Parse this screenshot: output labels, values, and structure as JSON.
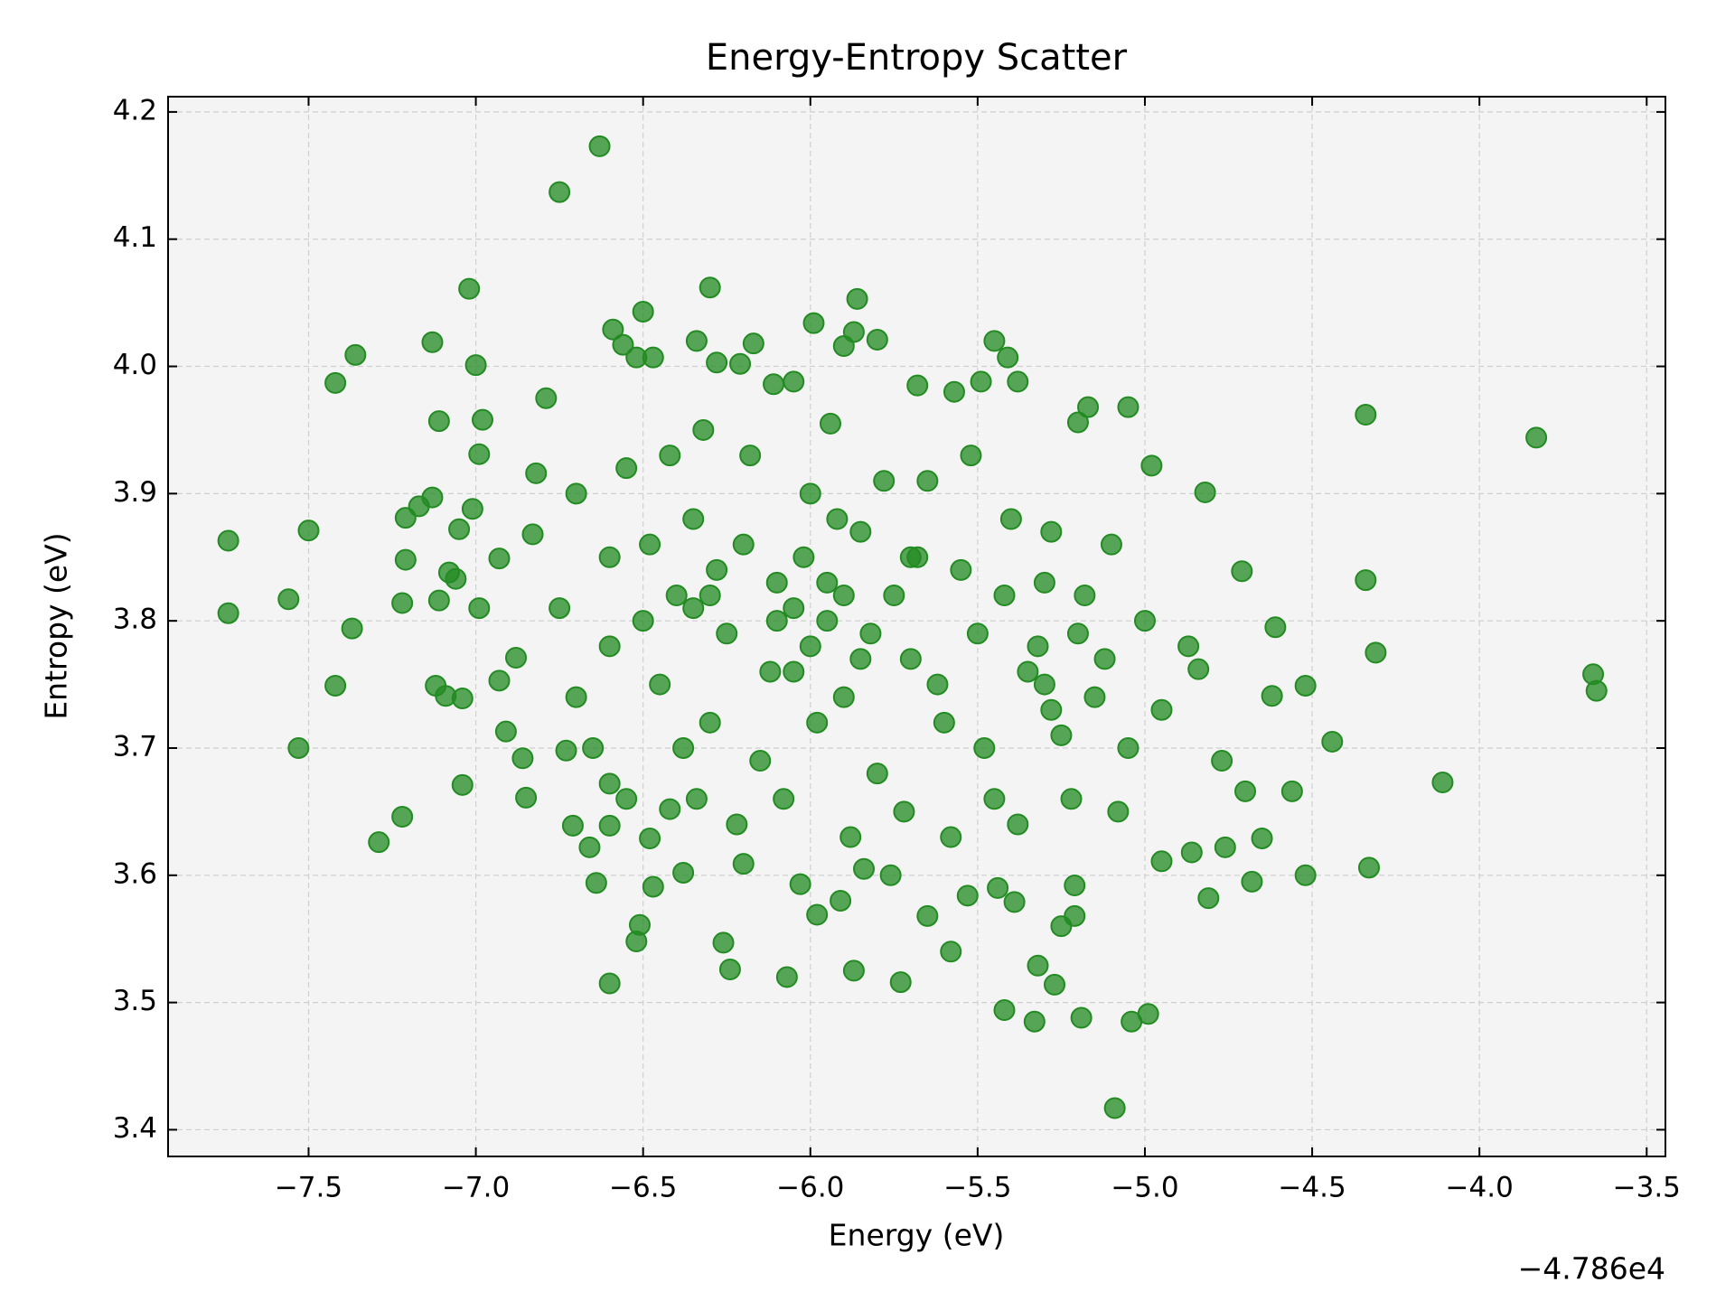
{
  "chart_data": {
    "type": "scatter",
    "title": "Energy-Entropy Scatter",
    "x_label": "Energy (eV)",
    "y_label": "Entropy (eV)",
    "x_offset_label": "−4.786e4",
    "color": "#228b22",
    "grid": true,
    "xlim": [
      -7.92,
      -3.444
    ],
    "ylim": [
      3.379,
      4.212
    ],
    "xticks": [
      {
        "value": -7.5,
        "label": "−7.5"
      },
      {
        "value": -7.0,
        "label": "−7.0"
      },
      {
        "value": -6.5,
        "label": "−6.5"
      },
      {
        "value": -6.0,
        "label": "−6.0"
      },
      {
        "value": -5.5,
        "label": "−5.5"
      },
      {
        "value": -5.0,
        "label": "−5.0"
      },
      {
        "value": -4.5,
        "label": "−4.5"
      },
      {
        "value": -4.0,
        "label": "−4.0"
      },
      {
        "value": -3.5,
        "label": "−3.5"
      }
    ],
    "yticks": [
      3.4,
      3.5,
      3.6,
      3.7,
      3.8,
      3.9,
      {
        "value": 4.0,
        "label": "4.0"
      },
      4.1,
      4.2
    ],
    "x": [
      -6.63,
      -6.75,
      -7.02,
      -6.3,
      -7.74,
      -7.74,
      -7.56,
      -7.5,
      -7.53,
      -7.42,
      -7.36,
      -7.13,
      -7.42,
      -7.37,
      -7.29,
      -7.22,
      -7.22,
      -7.21,
      -7.21,
      -7.17,
      -7.13,
      -7.11,
      -7.11,
      -7.12,
      -7.09,
      -7.08,
      -7.06,
      -7.05,
      -7.04,
      -7.04,
      -7.01,
      -7.0,
      -6.99,
      -6.99,
      -6.98,
      -6.93,
      -6.93,
      -6.91,
      -6.88,
      -6.86,
      -6.85,
      -6.83,
      -6.82,
      -6.79,
      -6.73,
      -6.71,
      -6.66,
      -6.64,
      -6.6,
      -6.6,
      -6.6,
      -6.52,
      -6.51,
      -6.48,
      -6.47,
      -6.42,
      -6.38,
      -6.34,
      -6.26,
      -6.24,
      -6.2,
      -6.07,
      -6.03,
      -5.98,
      -5.91,
      -5.87,
      -5.84,
      -5.76,
      -5.73,
      -5.65,
      -5.58,
      -5.53,
      -5.44,
      -5.42,
      -5.39,
      -5.33,
      -5.32,
      -5.27,
      -5.25,
      -5.21,
      -5.21,
      -5.19,
      -5.09,
      -5.04,
      -4.99,
      -4.95,
      -4.86,
      -4.81,
      -4.76,
      -4.77,
      -4.7,
      -4.68,
      -4.65,
      -4.62,
      -4.61,
      -4.56,
      -4.52,
      -4.52,
      -4.44,
      -4.34,
      -4.34,
      -4.33,
      -4.31,
      -4.11,
      -3.83,
      -3.66,
      -3.65,
      -4.71,
      -4.82,
      -4.84,
      -4.87,
      -4.98,
      -5.05,
      -5.17,
      -5.2,
      -5.45,
      -5.41,
      -5.38,
      -5.49,
      -5.8,
      -5.86,
      -5.99,
      -6.05,
      -6.17,
      -6.34,
      -6.5,
      -6.59,
      -6.56,
      -6.52,
      -6.47,
      -6.28,
      -6.21,
      -6.11,
      -5.68,
      -5.57,
      -5.9,
      -5.87,
      -5.94,
      -6.7,
      -6.6,
      -6.55,
      -6.5,
      -6.45,
      -6.4,
      -6.35,
      -6.3,
      -6.25,
      -6.2,
      -6.15,
      -6.1,
      -6.05,
      -6.0,
      -5.95,
      -5.9,
      -5.85,
      -5.8,
      -5.75,
      -5.7,
      -5.65,
      -5.6,
      -5.55,
      -5.5,
      -5.45,
      -5.4,
      -5.35,
      -5.3,
      -5.25,
      -5.2,
      -5.15,
      -5.1,
      -5.05,
      -5.0,
      -4.95,
      -6.75,
      -6.7,
      -6.65,
      -6.6,
      -6.55,
      -6.48,
      -6.42,
      -6.38,
      -6.32,
      -6.28,
      -6.22,
      -6.18,
      -6.12,
      -6.08,
      -6.02,
      -5.98,
      -5.92,
      -5.88,
      -5.82,
      -5.78,
      -5.72,
      -5.68,
      -5.62,
      -5.58,
      -5.52,
      -5.48,
      -5.42,
      -5.38,
      -5.32,
      -5.28,
      -5.22,
      -5.18,
      -5.12,
      -5.08,
      -6.0,
      -5.95,
      -6.05,
      -5.85,
      -5.3,
      -5.28,
      -6.3,
      -6.35,
      -6.1,
      -5.9,
      -5.7
    ],
    "y": [
      4.173,
      4.137,
      4.061,
      4.062,
      3.863,
      3.806,
      3.817,
      3.871,
      3.7,
      3.987,
      4.009,
      4.019,
      3.749,
      3.794,
      3.626,
      3.646,
      3.814,
      3.848,
      3.881,
      3.89,
      3.897,
      3.957,
      3.816,
      3.749,
      3.741,
      3.838,
      3.833,
      3.872,
      3.739,
      3.671,
      3.888,
      4.001,
      3.931,
      3.81,
      3.958,
      3.849,
      3.753,
      3.713,
      3.771,
      3.692,
      3.661,
      3.868,
      3.916,
      3.975,
      3.698,
      3.639,
      3.622,
      3.594,
      3.515,
      3.639,
      3.672,
      3.548,
      3.561,
      3.629,
      3.591,
      3.652,
      3.602,
      3.66,
      3.547,
      3.526,
      3.609,
      3.52,
      3.593,
      3.569,
      3.58,
      3.525,
      3.605,
      3.6,
      3.516,
      3.568,
      3.54,
      3.584,
      3.59,
      3.494,
      3.579,
      3.485,
      3.529,
      3.514,
      3.56,
      3.568,
      3.592,
      3.488,
      3.417,
      3.485,
      3.491,
      3.611,
      3.618,
      3.582,
      3.622,
      3.69,
      3.666,
      3.595,
      3.629,
      3.741,
      3.795,
      3.666,
      3.749,
      3.6,
      3.705,
      3.962,
      3.832,
      3.606,
      3.775,
      3.673,
      3.944,
      3.758,
      3.745,
      3.839,
      3.901,
      3.762,
      3.78,
      3.922,
      3.968,
      3.968,
      3.956,
      4.02,
      4.007,
      3.988,
      3.988,
      4.021,
      4.053,
      4.034,
      3.988,
      4.018,
      4.02,
      4.043,
      4.029,
      4.017,
      4.007,
      4.007,
      4.003,
      4.002,
      3.986,
      3.985,
      3.98,
      4.016,
      4.027,
      3.955,
      3.9,
      3.85,
      3.92,
      3.8,
      3.75,
      3.82,
      3.88,
      3.72,
      3.79,
      3.86,
      3.69,
      3.83,
      3.76,
      3.9,
      3.8,
      3.74,
      3.87,
      3.68,
      3.82,
      3.77,
      3.91,
      3.72,
      3.84,
      3.79,
      3.66,
      3.88,
      3.76,
      3.83,
      3.71,
      3.79,
      3.74,
      3.86,
      3.7,
      3.8,
      3.73,
      3.81,
      3.74,
      3.7,
      3.78,
      3.66,
      3.86,
      3.93,
      3.7,
      3.95,
      3.84,
      3.64,
      3.93,
      3.76,
      3.66,
      3.85,
      3.72,
      3.88,
      3.63,
      3.79,
      3.91,
      3.65,
      3.85,
      3.75,
      3.63,
      3.93,
      3.7,
      3.82,
      3.64,
      3.78,
      3.87,
      3.66,
      3.82,
      3.77,
      3.65,
      3.78,
      3.83,
      3.81,
      3.77,
      3.75,
      3.73,
      3.82,
      3.81,
      3.8,
      3.82,
      3.85
    ]
  }
}
